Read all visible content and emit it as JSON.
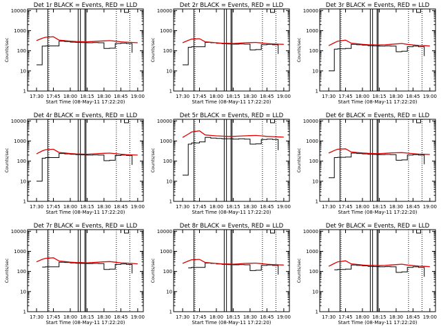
{
  "figure": {
    "xlabel": "Start Time (08-May-11 17:22:20)",
    "ylabel": "Counts/sec",
    "x_ticks": [
      "17:30",
      "17:45",
      "18:00",
      "18:15",
      "18:30",
      "18:45",
      "19:00"
    ],
    "y_ticks": [
      "1",
      "10",
      "100",
      "1000",
      "10000"
    ]
  },
  "chart_data": [
    {
      "type": "line",
      "title": "Det 1r BLACK = Events, RED = LLD",
      "xlim": [
        "17:22",
        "19:05"
      ],
      "ylim": [
        1,
        12000
      ],
      "yscale": "log",
      "x": [
        "17:30",
        "17:35",
        "17:38",
        "17:45",
        "17:50",
        "17:55",
        "18:00",
        "18:05",
        "18:10",
        "18:15",
        "18:20",
        "18:25",
        "18:30",
        "18:35",
        "18:40",
        "18:45",
        "18:50",
        "18:55",
        "19:00"
      ],
      "series": [
        {
          "name": "BLACK = Events",
          "values": [
            20,
            170,
            175,
            175,
            300,
            290,
            270,
            260,
            255,
            250,
            255,
            250,
            130,
            135,
            230,
            240,
            230,
            80,
            null
          ]
        },
        {
          "name": "RED = LLD",
          "values": [
            320,
            420,
            470,
            500,
            340,
            320,
            300,
            290,
            285,
            280,
            290,
            300,
            310,
            320,
            300,
            280,
            270,
            260,
            250
          ]
        }
      ]
    },
    {
      "type": "line",
      "title": "Det 2r BLACK = Events, RED = LLD",
      "xlim": [
        "17:22",
        "19:05"
      ],
      "ylim": [
        1,
        12000
      ],
      "yscale": "log",
      "x": [
        "17:30",
        "17:35",
        "17:38",
        "17:45",
        "17:50",
        "17:55",
        "18:00",
        "18:05",
        "18:10",
        "18:15",
        "18:20",
        "18:25",
        "18:30",
        "18:35",
        "18:40",
        "18:45",
        "18:50",
        "18:55",
        "19:00"
      ],
      "series": [
        {
          "name": "BLACK = Events",
          "values": [
            20,
            150,
            160,
            160,
            260,
            250,
            235,
            225,
            220,
            215,
            220,
            215,
            110,
            115,
            200,
            210,
            200,
            70,
            null
          ]
        },
        {
          "name": "RED = LLD",
          "values": [
            250,
            330,
            380,
            400,
            280,
            265,
            250,
            240,
            235,
            230,
            240,
            250,
            255,
            260,
            245,
            230,
            220,
            215,
            210
          ]
        }
      ]
    },
    {
      "type": "line",
      "title": "Det 3r BLACK = Events, RED = LLD",
      "xlim": [
        "17:22",
        "19:05"
      ],
      "ylim": [
        1,
        12000
      ],
      "yscale": "log",
      "x": [
        "17:30",
        "17:35",
        "17:38",
        "17:45",
        "17:50",
        "17:55",
        "18:00",
        "18:05",
        "18:10",
        "18:15",
        "18:20",
        "18:25",
        "18:30",
        "18:35",
        "18:40",
        "18:45",
        "18:50",
        "18:55",
        "19:00"
      ],
      "series": [
        {
          "name": "BLACK = Events",
          "values": [
            10,
            120,
            125,
            130,
            210,
            200,
            190,
            180,
            175,
            170,
            175,
            170,
            90,
            95,
            160,
            170,
            160,
            55,
            null
          ]
        },
        {
          "name": "RED = LLD",
          "values": [
            180,
            250,
            300,
            340,
            240,
            225,
            210,
            200,
            200,
            195,
            200,
            210,
            220,
            230,
            210,
            195,
            185,
            180,
            175
          ]
        }
      ]
    },
    {
      "type": "line",
      "title": "Det 4r BLACK = Events, RED = LLD",
      "xlim": [
        "17:22",
        "19:05"
      ],
      "ylim": [
        1,
        12000
      ],
      "yscale": "log",
      "x": [
        "17:30",
        "17:35",
        "17:38",
        "17:45",
        "17:50",
        "17:55",
        "18:00",
        "18:05",
        "18:10",
        "18:15",
        "18:20",
        "18:25",
        "18:30",
        "18:35",
        "18:40",
        "18:45",
        "18:50",
        "18:55",
        "19:00"
      ],
      "series": [
        {
          "name": "BLACK = Events",
          "values": [
            10,
            140,
            150,
            150,
            240,
            230,
            220,
            210,
            205,
            200,
            205,
            200,
            105,
            110,
            190,
            200,
            190,
            65,
            null
          ]
        },
        {
          "name": "RED = LLD",
          "values": [
            230,
            320,
            370,
            390,
            270,
            255,
            240,
            230,
            225,
            220,
            230,
            240,
            245,
            250,
            235,
            220,
            210,
            205,
            200
          ]
        }
      ]
    },
    {
      "type": "line",
      "title": "Det 5r BLACK = Events, RED = LLD",
      "xlim": [
        "17:22",
        "19:05"
      ],
      "ylim": [
        1,
        12000
      ],
      "yscale": "log",
      "x": [
        "17:30",
        "17:35",
        "17:38",
        "17:45",
        "17:50",
        "17:55",
        "18:00",
        "18:05",
        "18:10",
        "18:15",
        "18:20",
        "18:25",
        "18:30",
        "18:35",
        "18:40",
        "18:45",
        "18:50",
        "18:55",
        "19:00"
      ],
      "series": [
        {
          "name": "BLACK = Events",
          "values": [
            20,
            700,
            800,
            900,
            1500,
            1400,
            1350,
            1300,
            1300,
            1250,
            1300,
            1250,
            700,
            720,
            1200,
            1250,
            1200,
            350,
            null
          ]
        },
        {
          "name": "RED = LLD",
          "values": [
            1500,
            2200,
            2800,
            3200,
            2000,
            1900,
            1800,
            1750,
            1700,
            1700,
            1750,
            1800,
            1850,
            1900,
            1800,
            1700,
            1650,
            1600,
            1550
          ]
        }
      ]
    },
    {
      "type": "line",
      "title": "Det 6r BLACK = Events, RED = LLD",
      "xlim": [
        "17:22",
        "19:05"
      ],
      "ylim": [
        1,
        12000
      ],
      "yscale": "log",
      "x": [
        "17:30",
        "17:35",
        "17:38",
        "17:45",
        "17:50",
        "17:55",
        "18:00",
        "18:05",
        "18:10",
        "18:15",
        "18:20",
        "18:25",
        "18:30",
        "18:35",
        "18:40",
        "18:45",
        "18:50",
        "18:55",
        "19:00"
      ],
      "series": [
        {
          "name": "BLACK = Events",
          "values": [
            15,
            150,
            155,
            160,
            250,
            240,
            230,
            220,
            215,
            210,
            215,
            210,
            110,
            115,
            200,
            210,
            200,
            70,
            null
          ]
        },
        {
          "name": "RED = LLD",
          "values": [
            250,
            340,
            390,
            410,
            285,
            270,
            255,
            245,
            240,
            235,
            245,
            255,
            260,
            265,
            250,
            235,
            225,
            220,
            215
          ]
        }
      ]
    },
    {
      "type": "line",
      "title": "Det 7r BLACK = Events, RED = LLD",
      "xlim": [
        "17:22",
        "19:05"
      ],
      "ylim": [
        1,
        12000
      ],
      "yscale": "log",
      "x": [
        "17:30",
        "17:35",
        "17:38",
        "17:45",
        "17:50",
        "17:55",
        "18:00",
        "18:05",
        "18:10",
        "18:15",
        "18:20",
        "18:25",
        "18:30",
        "18:35",
        "18:40",
        "18:45",
        "18:50",
        "18:55",
        "19:00"
      ],
      "series": [
        {
          "name": "BLACK = Events",
          "values": [
            null,
            165,
            170,
            170,
            290,
            280,
            265,
            255,
            250,
            245,
            250,
            245,
            125,
            130,
            225,
            235,
            225,
            80,
            null
          ]
        },
        {
          "name": "RED = LLD",
          "values": [
            300,
            400,
            450,
            480,
            330,
            310,
            290,
            280,
            275,
            270,
            280,
            290,
            300,
            310,
            290,
            270,
            260,
            250,
            240
          ]
        }
      ]
    },
    {
      "type": "line",
      "title": "Det 8r BLACK = Events, RED = LLD",
      "xlim": [
        "17:22",
        "19:05"
      ],
      "ylim": [
        1,
        12000
      ],
      "yscale": "log",
      "x": [
        "17:30",
        "17:35",
        "17:38",
        "17:45",
        "17:50",
        "17:55",
        "18:00",
        "18:05",
        "18:10",
        "18:15",
        "18:20",
        "18:25",
        "18:30",
        "18:35",
        "18:40",
        "18:45",
        "18:50",
        "18:55",
        "19:00"
      ],
      "series": [
        {
          "name": "BLACK = Events",
          "values": [
            null,
            150,
            160,
            160,
            260,
            250,
            235,
            225,
            220,
            215,
            220,
            215,
            110,
            115,
            200,
            210,
            200,
            70,
            null
          ]
        },
        {
          "name": "RED = LLD",
          "values": [
            250,
            330,
            380,
            400,
            280,
            265,
            250,
            240,
            235,
            230,
            240,
            250,
            255,
            260,
            245,
            230,
            220,
            215,
            210
          ]
        }
      ]
    },
    {
      "type": "line",
      "title": "Det 9r BLACK = Events, RED = LLD",
      "xlim": [
        "17:22",
        "19:05"
      ],
      "ylim": [
        1,
        12000
      ],
      "yscale": "log",
      "x": [
        "17:30",
        "17:35",
        "17:38",
        "17:45",
        "17:50",
        "17:55",
        "18:00",
        "18:05",
        "18:10",
        "18:15",
        "18:20",
        "18:25",
        "18:30",
        "18:35",
        "18:40",
        "18:45",
        "18:50",
        "18:55",
        "19:00"
      ],
      "series": [
        {
          "name": "BLACK = Events",
          "values": [
            null,
            120,
            125,
            130,
            210,
            200,
            190,
            180,
            175,
            170,
            175,
            170,
            90,
            95,
            160,
            170,
            160,
            55,
            null
          ]
        },
        {
          "name": "RED = LLD",
          "values": [
            180,
            250,
            300,
            340,
            240,
            225,
            210,
            200,
            200,
            195,
            200,
            210,
            220,
            230,
            210,
            195,
            185,
            180,
            175
          ]
        }
      ]
    }
  ]
}
